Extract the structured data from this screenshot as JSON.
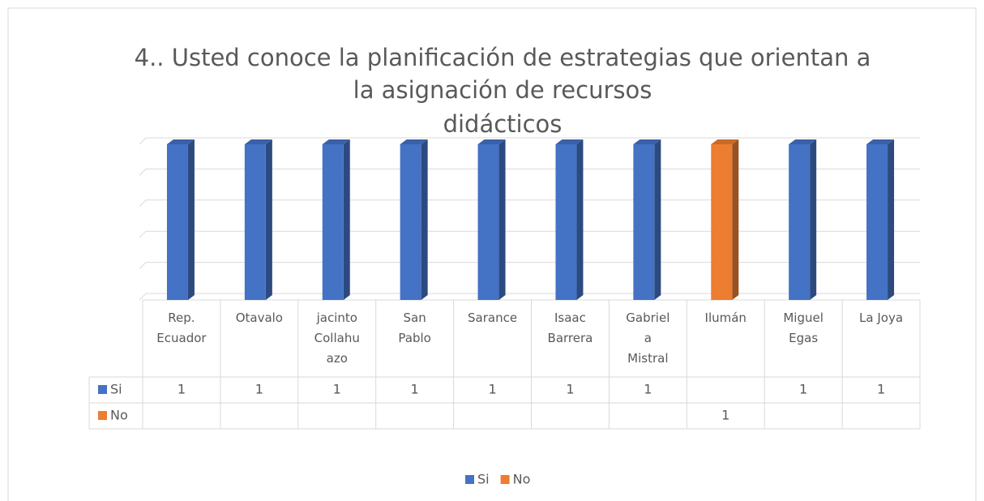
{
  "chart_data": {
    "type": "bar",
    "title": [
      "4.. Usted conoce la planificación de estrategias que orientan a",
      "la asignación de recursos",
      "didácticos"
    ],
    "categories": [
      "Rep. Ecuador",
      "Otavalo",
      "jacinto Collahuazo",
      "San Pablo",
      "Sarance",
      "Isaac Barrera",
      "Gabriela Mistral",
      "Ilumán",
      "Miguel Egas",
      "La Joya"
    ],
    "series": [
      {
        "name": "Si",
        "color": "#4472c4",
        "values": [
          1,
          1,
          1,
          1,
          1,
          1,
          1,
          null,
          1,
          1
        ]
      },
      {
        "name": "No",
        "color": "#ed7d31",
        "values": [
          null,
          null,
          null,
          null,
          null,
          null,
          null,
          1,
          null,
          null
        ]
      }
    ],
    "ylim": [
      0,
      1
    ],
    "yticks": [
      0,
      0.2,
      0.4,
      0.6,
      0.8,
      1
    ],
    "grid": true,
    "legend": "bottom"
  }
}
